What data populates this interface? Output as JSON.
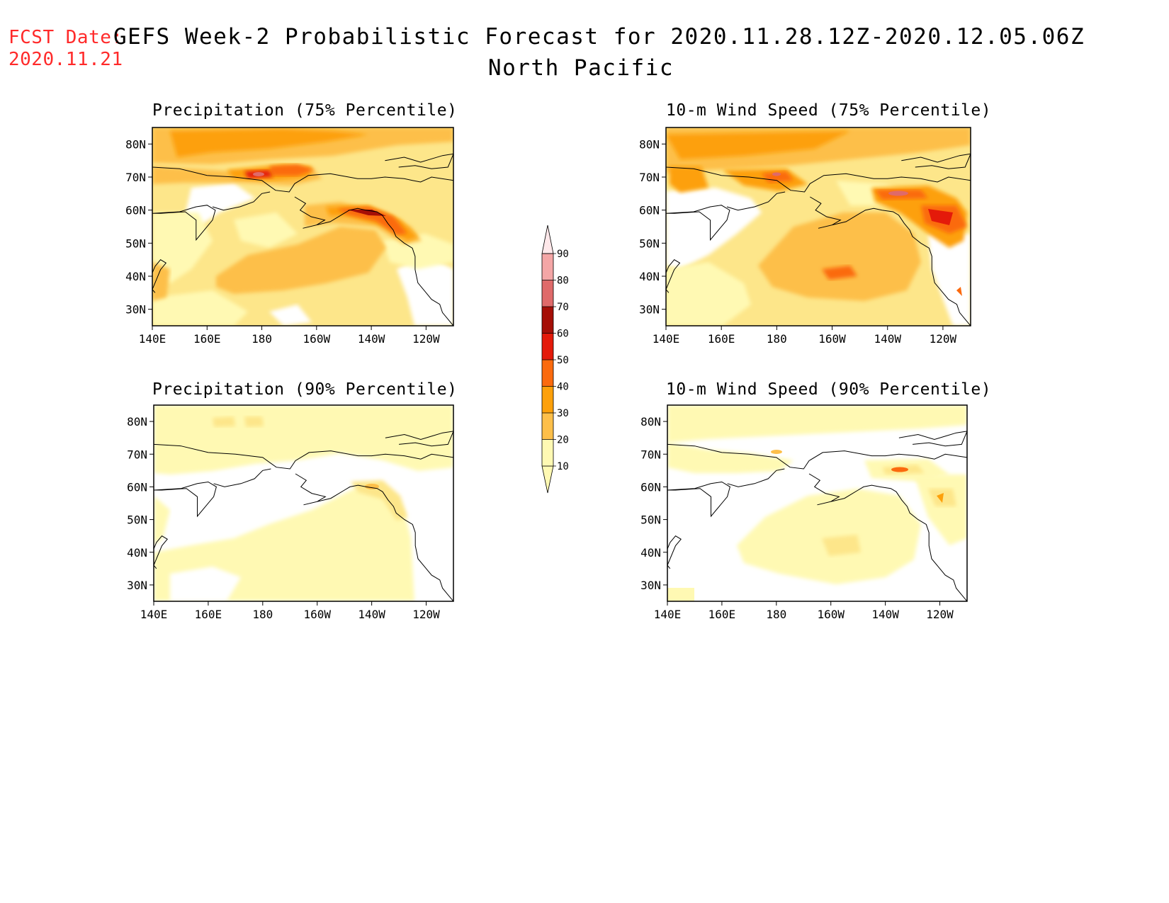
{
  "header": {
    "fcst_label": "FCST Date:",
    "fcst_date": "2020.11.21",
    "title": "GEFS Week-2 Probabilistic Forecast for 2020.11.28.12Z-2020.12.05.06Z",
    "subtitle": "North Pacific"
  },
  "panels": [
    {
      "title": "Precipitation (75% Percentile)"
    },
    {
      "title": "10-m Wind Speed (75% Percentile)"
    },
    {
      "title": "Precipitation (90% Percentile)"
    },
    {
      "title": "10-m Wind Speed (90% Percentile)"
    }
  ],
  "axes": {
    "lat_labels": [
      "80N",
      "70N",
      "60N",
      "50N",
      "40N",
      "30N"
    ],
    "lat_values": [
      80,
      70,
      60,
      50,
      40,
      30
    ],
    "lon_labels": [
      "140E",
      "160E",
      "180",
      "160W",
      "140W",
      "120W"
    ],
    "lon_values": [
      140,
      160,
      180,
      200,
      220,
      240
    ],
    "lon_range": [
      140,
      250
    ],
    "lat_range": [
      25,
      85
    ]
  },
  "colorbar": {
    "levels": [
      "10",
      "20",
      "30",
      "40",
      "50",
      "60",
      "70",
      "80",
      "90"
    ],
    "colors": [
      "#fff9b3",
      "#fde68a",
      "#fdbf4a",
      "#fda00a",
      "#fb6a0e",
      "#e41a0a",
      "#a50f07",
      "#df6a6a",
      "#f4a6a6",
      "#ffe8ea"
    ]
  },
  "colors": {
    "fcst_text": "#ff2a2a",
    "frame": "#000000",
    "coast": "#000000",
    "land_mask": "#ffffff"
  }
}
